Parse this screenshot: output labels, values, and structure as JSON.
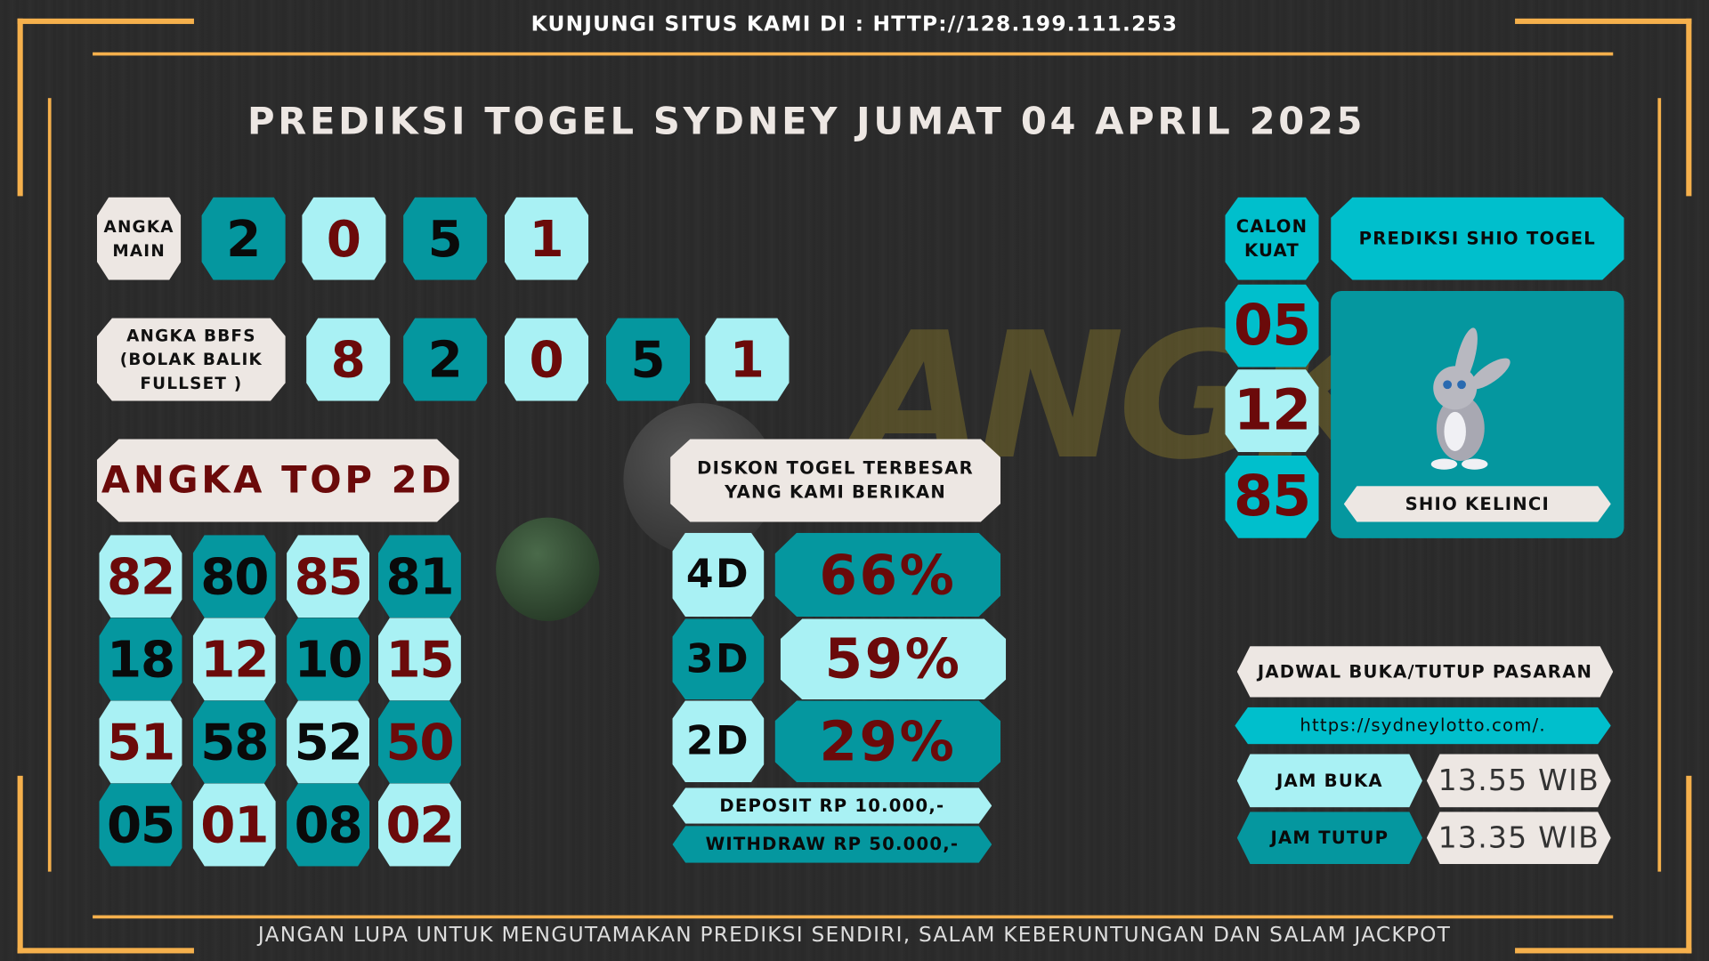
{
  "header": {
    "visit_text": "KUNJUNGI SITUS KAMI DI : HTTP://128.199.111.253",
    "title": "PREDIKSI TOGEL SYDNEY JUMAT 04 APRIL 2025"
  },
  "angka_main": {
    "label_line1": "ANGKA",
    "label_line2": "MAIN",
    "digits": [
      "2",
      "0",
      "5",
      "1"
    ]
  },
  "bbfs": {
    "label_line1": "ANGKA BBFS",
    "label_line2": "(BOLAK BALIK",
    "label_line3": "FULLSET )",
    "digits": [
      "8",
      "2",
      "0",
      "5",
      "1"
    ]
  },
  "top2d": {
    "title": "ANGKA TOP 2D",
    "rows": [
      [
        "82",
        "80",
        "85",
        "81"
      ],
      [
        "18",
        "12",
        "10",
        "15"
      ],
      [
        "51",
        "58",
        "52",
        "50"
      ],
      [
        "05",
        "01",
        "08",
        "02"
      ]
    ]
  },
  "diskon": {
    "title_line1": "DISKON TOGEL TERBESAR",
    "title_line2": "YANG KAMI BERIKAN",
    "items": [
      {
        "type": "4D",
        "value": "66%"
      },
      {
        "type": "3D",
        "value": "59%"
      },
      {
        "type": "2D",
        "value": "29%"
      }
    ],
    "deposit": "DEPOSIT RP 10.000,-",
    "withdraw": "WITHDRAW RP 50.000,-"
  },
  "calon_kuat": {
    "label_line1": "CALON",
    "label_line2": "KUAT",
    "numbers": [
      "05",
      "12",
      "85"
    ]
  },
  "shio": {
    "title": "PREDIKSI SHIO TOGEL",
    "name": "SHIO KELINCI",
    "icon": "rabbit-icon"
  },
  "jadwal": {
    "title": "JADWAL BUKA/TUTUP PASARAN",
    "url": "https://sydneylotto.com/.",
    "buka_label": "JAM BUKA",
    "buka_value": "13.55 WIB",
    "tutup_label": "JAM TUTUP",
    "tutup_value": "13.35 WIB"
  },
  "footer": {
    "text": "JANGAN LUPA UNTUK MENGUTAMAKAN PREDIKSI SENDIRI, SALAM KEBERUNTUNGAN DAN SALAM JACKPOT"
  },
  "colors": {
    "accent": "#f5b04c",
    "teal": "#05979f",
    "light_cyan": "#a9f1f4",
    "cyan": "#00bfcc",
    "cream": "#ede7e3",
    "number_red": "#6b0a0a"
  }
}
